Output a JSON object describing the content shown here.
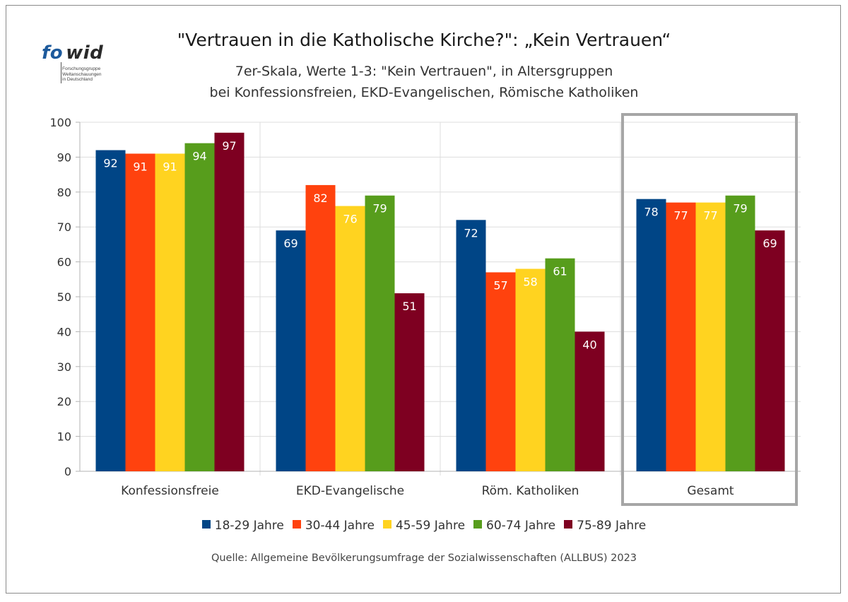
{
  "logo": {
    "word_fo": "fo",
    "word_wid": "wid",
    "line1": "Forschungsgruppe",
    "line2": "Weltanschauungen",
    "line3": "in Deutschland"
  },
  "header": {
    "title": "\"Vertrauen in die Katholische Kirche?\": „Kein Vertrauen“",
    "subtitle_line1": "7er-Skala, Werte 1-3: \"Kein Vertrauen\", in Altersgruppen",
    "subtitle_line2": "bei Konfessionsfreien, EKD-Evangelischen, Römische Katholiken"
  },
  "chart_data": {
    "type": "bar",
    "categories": [
      "Konfessionsfreie",
      "EKD-Evangelische",
      "Röm. Katholiken",
      "Gesamt"
    ],
    "series": [
      {
        "name": "18-29 Jahre",
        "color": "#004586",
        "values": [
          92,
          69,
          72,
          78
        ]
      },
      {
        "name": "30-44 Jahre",
        "color": "#ff420e",
        "values": [
          91,
          82,
          57,
          77
        ]
      },
      {
        "name": "45-59 Jahre",
        "color": "#ffd320",
        "values": [
          91,
          76,
          58,
          77
        ]
      },
      {
        "name": "60-74 Jahre",
        "color": "#579d1c",
        "values": [
          94,
          79,
          61,
          79
        ]
      },
      {
        "name": "75-89 Jahre",
        "color": "#7e0021",
        "values": [
          97,
          51,
          40,
          69
        ]
      }
    ],
    "ylim": [
      0,
      100
    ],
    "yticks": [
      0,
      10,
      20,
      30,
      40,
      50,
      60,
      70,
      80,
      90,
      100
    ],
    "grid": true,
    "legend_position": "bottom",
    "highlighted_category": "Gesamt"
  },
  "source": "Quelle: Allgemeine Bevölkerungsumfrage der Sozialwissenschaften (ALLBUS) 2023"
}
